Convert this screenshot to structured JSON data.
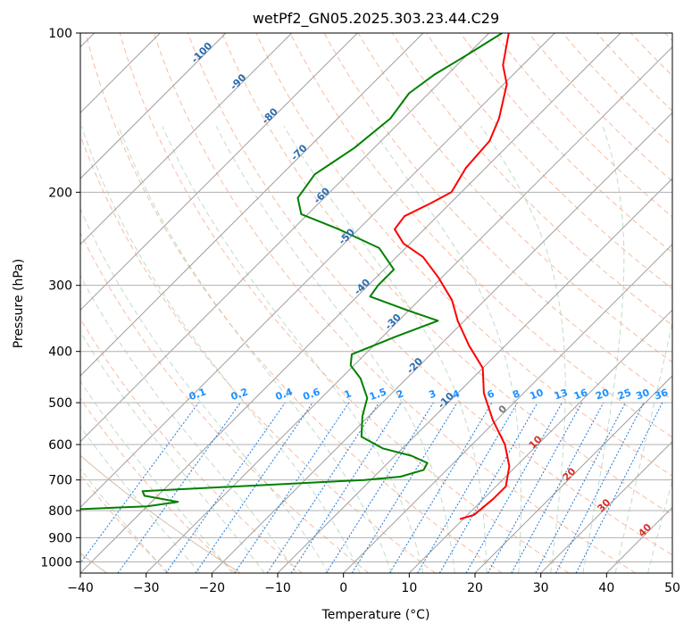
{
  "chart_data": {
    "type": "skew-t",
    "title": "wetPf2_GN05.2025.303.23.44.C29",
    "xlabel": "Temperature (°C)",
    "ylabel": "Pressure (hPa)",
    "xlim": [
      -40,
      50
    ],
    "ylim": [
      1050,
      100
    ],
    "x_ticks": [
      -40,
      -30,
      -20,
      -10,
      0,
      10,
      20,
      30,
      40,
      50
    ],
    "x_tick_labels": [
      "−40",
      "−30",
      "−20",
      "−10",
      "0",
      "10",
      "20",
      "30",
      "40",
      "50"
    ],
    "y_ticks": [
      100,
      200,
      300,
      400,
      500,
      600,
      700,
      800,
      900,
      1000
    ],
    "y_tick_labels": [
      "100",
      "200",
      "300",
      "400",
      "500",
      "600",
      "700",
      "800",
      "900",
      "1000"
    ],
    "grid": true,
    "series": [
      {
        "name": "Temperature",
        "color": "#ff0000",
        "points": [
          {
            "p": 830,
            "t": 9.5
          },
          {
            "p": 815,
            "t": 11
          },
          {
            "p": 760,
            "t": 11.5
          },
          {
            "p": 720,
            "t": 11.5
          },
          {
            "p": 660,
            "t": 9
          },
          {
            "p": 600,
            "t": 5
          },
          {
            "p": 540,
            "t": -0.5
          },
          {
            "p": 480,
            "t": -6
          },
          {
            "p": 430,
            "t": -10
          },
          {
            "p": 390,
            "t": -15.5
          },
          {
            "p": 350,
            "t": -21
          },
          {
            "p": 320,
            "t": -25
          },
          {
            "p": 290,
            "t": -30.5
          },
          {
            "p": 265,
            "t": -36
          },
          {
            "p": 250,
            "t": -41
          },
          {
            "p": 235,
            "t": -44.5
          },
          {
            "p": 222,
            "t": -45
          },
          {
            "p": 210,
            "t": -43
          },
          {
            "p": 200,
            "t": -41.5
          },
          {
            "p": 180,
            "t": -43
          },
          {
            "p": 160,
            "t": -43.5
          },
          {
            "p": 145,
            "t": -45.5
          },
          {
            "p": 125,
            "t": -49.5
          },
          {
            "p": 115,
            "t": -53
          },
          {
            "p": 100,
            "t": -57
          }
        ]
      },
      {
        "name": "Dewpoint",
        "color": "#008000",
        "points": [
          {
            "p": 830,
            "t": -56
          },
          {
            "p": 825,
            "t": -70
          },
          {
            "p": 805,
            "t": -70
          },
          {
            "p": 800,
            "t": -55
          },
          {
            "p": 785,
            "t": -40
          },
          {
            "p": 770,
            "t": -36
          },
          {
            "p": 750,
            "t": -42
          },
          {
            "p": 735,
            "t": -43
          },
          {
            "p": 700,
            "t": -11
          },
          {
            "p": 690,
            "t": -6
          },
          {
            "p": 670,
            "t": -3.5
          },
          {
            "p": 650,
            "t": -4
          },
          {
            "p": 630,
            "t": -7.5
          },
          {
            "p": 610,
            "t": -13
          },
          {
            "p": 580,
            "t": -18
          },
          {
            "p": 530,
            "t": -21
          },
          {
            "p": 490,
            "t": -23
          },
          {
            "p": 450,
            "t": -27
          },
          {
            "p": 425,
            "t": -30.5
          },
          {
            "p": 405,
            "t": -32
          },
          {
            "p": 375,
            "t": -28
          },
          {
            "p": 350,
            "t": -24
          },
          {
            "p": 335,
            "t": -30
          },
          {
            "p": 315,
            "t": -38
          },
          {
            "p": 300,
            "t": -38.5
          },
          {
            "p": 280,
            "t": -38.5
          },
          {
            "p": 255,
            "t": -44
          },
          {
            "p": 235,
            "t": -53
          },
          {
            "p": 220,
            "t": -61
          },
          {
            "p": 205,
            "t": -64
          },
          {
            "p": 185,
            "t": -65
          },
          {
            "p": 165,
            "t": -63
          },
          {
            "p": 145,
            "t": -62
          },
          {
            "p": 130,
            "t": -63
          },
          {
            "p": 120,
            "t": -62
          },
          {
            "p": 110,
            "t": -60
          },
          {
            "p": 100,
            "t": -58
          }
        ]
      }
    ],
    "dry_adiabat_labels": [
      "-100",
      "-90",
      "-80",
      "-70",
      "-60",
      "-50",
      "-40",
      "-30",
      "-20",
      "-10",
      "0",
      "10",
      "20",
      "30",
      "40"
    ],
    "mixing_ratio_labels": [
      "0.1",
      "0.2",
      "0.4",
      "0.6",
      "1",
      "1.5",
      "2",
      "3",
      "4",
      "6",
      "8",
      "10",
      "13",
      "16",
      "20",
      "25",
      "30",
      "36"
    ]
  }
}
